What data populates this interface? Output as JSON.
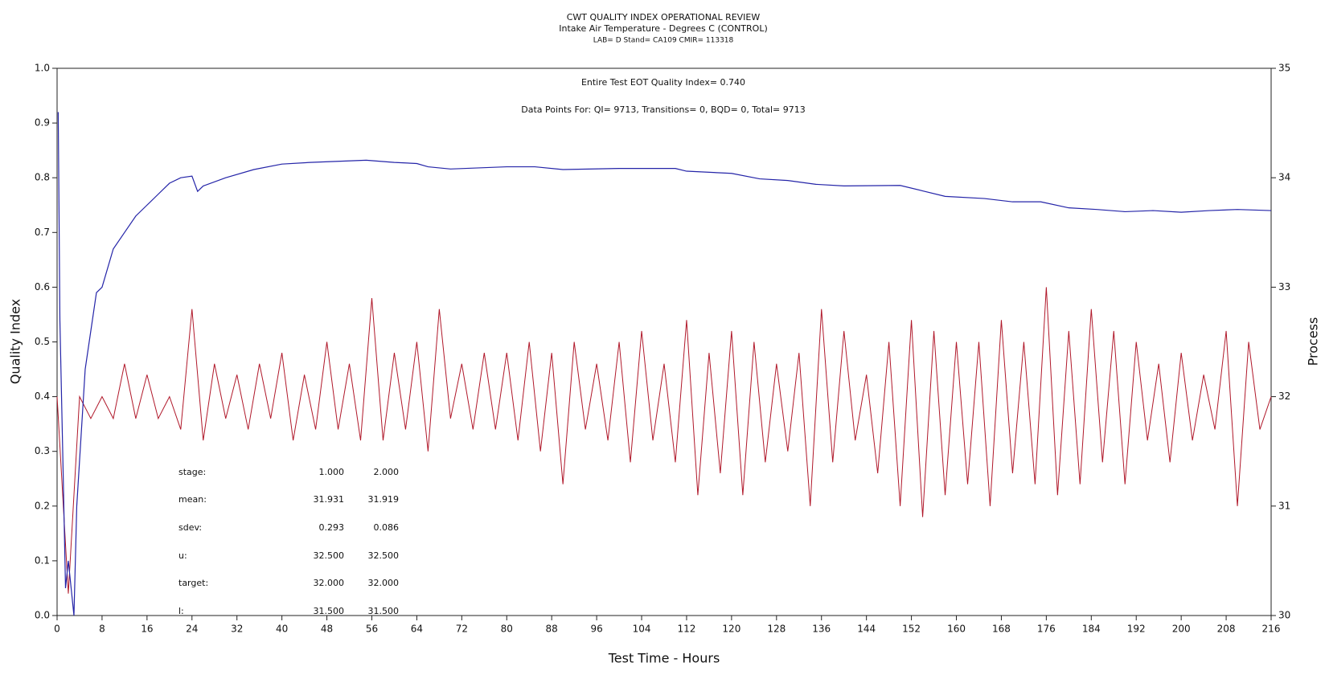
{
  "chart_data": {
    "type": "line",
    "title": "CWT QUALITY INDEX OPERATIONAL REVIEW",
    "subtitle": "Intake Air Temperature - Degrees C (CONTROL)",
    "subtitle2": "LAB= D Stand= CA109 CMIR= 113318",
    "xlabel": "Test Time - Hours",
    "ylabel": "Quality Index",
    "y2label": "Process",
    "annotations": [
      "Entire Test EOT Quality Index=   0.740",
      "Data Points For: QI=  9713, Transitions=     0, BQD=     0, Total=  9713"
    ],
    "stats_table": {
      "rows": [
        [
          "stage:",
          "1.000",
          "2.000"
        ],
        [
          "mean:",
          "31.931",
          "31.919"
        ],
        [
          "sdev:",
          "0.293",
          "0.086"
        ],
        [
          "u:",
          "32.500",
          "32.500"
        ],
        [
          "target:",
          "32.000",
          "32.000"
        ],
        [
          "l:",
          "31.500",
          "31.500"
        ]
      ]
    },
    "xlim": [
      0,
      216
    ],
    "xticks": [
      0,
      8,
      16,
      24,
      32,
      40,
      48,
      56,
      64,
      72,
      80,
      88,
      96,
      104,
      112,
      120,
      128,
      136,
      144,
      152,
      160,
      168,
      176,
      184,
      192,
      200,
      208,
      216
    ],
    "ylim": [
      0,
      1
    ],
    "yticks": [
      {
        "value": 0,
        "label": "0.0"
      },
      0.1,
      0.2,
      0.3,
      0.4,
      0.5,
      0.6,
      0.7,
      0.8,
      0.9,
      {
        "value": 1,
        "label": "1.0"
      }
    ],
    "y2lim": [
      30,
      35
    ],
    "y2ticks": [
      30,
      31,
      32,
      33,
      34,
      35
    ],
    "series": [
      {
        "name": "Process",
        "axis": "y2",
        "color": "#b0182a",
        "x": [
          0,
          2,
          4,
          6,
          8,
          10,
          12,
          14,
          16,
          18,
          20,
          22,
          24,
          26,
          28,
          30,
          32,
          34,
          36,
          38,
          40,
          42,
          44,
          46,
          48,
          50,
          52,
          54,
          56,
          58,
          60,
          62,
          64,
          66,
          68,
          70,
          72,
          74,
          76,
          78,
          80,
          82,
          84,
          86,
          88,
          90,
          92,
          94,
          96,
          98,
          100,
          102,
          104,
          106,
          108,
          110,
          112,
          114,
          116,
          118,
          120,
          122,
          124,
          126,
          128,
          130,
          132,
          134,
          136,
          138,
          140,
          142,
          144,
          146,
          148,
          150,
          152,
          154,
          156,
          158,
          160,
          162,
          164,
          166,
          168,
          170,
          172,
          174,
          176,
          178,
          180,
          182,
          184,
          186,
          188,
          190,
          192,
          194,
          196,
          198,
          200,
          202,
          204,
          206,
          208,
          210,
          212,
          214,
          216
        ],
        "values": [
          32.0,
          30.2,
          32.0,
          31.8,
          32.0,
          31.8,
          32.3,
          31.8,
          32.2,
          31.8,
          32.0,
          31.7,
          32.8,
          31.6,
          32.3,
          31.8,
          32.2,
          31.7,
          32.3,
          31.8,
          32.4,
          31.6,
          32.2,
          31.7,
          32.5,
          31.7,
          32.3,
          31.6,
          32.9,
          31.6,
          32.4,
          31.7,
          32.5,
          31.5,
          32.8,
          31.8,
          32.3,
          31.7,
          32.4,
          31.7,
          32.4,
          31.6,
          32.5,
          31.5,
          32.4,
          31.2,
          32.5,
          31.7,
          32.3,
          31.6,
          32.5,
          31.4,
          32.6,
          31.6,
          32.3,
          31.4,
          32.7,
          31.1,
          32.4,
          31.3,
          32.6,
          31.1,
          32.5,
          31.4,
          32.3,
          31.5,
          32.4,
          31.0,
          32.8,
          31.4,
          32.6,
          31.6,
          32.2,
          31.3,
          32.5,
          31.0,
          32.7,
          30.9,
          32.6,
          31.1,
          32.5,
          31.2,
          32.5,
          31.0,
          32.7,
          31.3,
          32.5,
          31.2,
          33.0,
          31.1,
          32.6,
          31.2,
          32.8,
          31.4,
          32.6,
          31.2,
          32.5,
          31.6,
          32.3,
          31.4,
          32.4,
          31.6,
          32.2,
          31.7,
          32.6,
          31.0,
          32.5,
          31.7,
          32.0
        ]
      },
      {
        "name": "Quality Index",
        "axis": "y",
        "color": "#2424a8",
        "x": [
          0.2,
          0.5,
          1,
          1.5,
          2,
          3,
          3.5,
          5,
          6,
          7,
          8,
          10,
          12,
          14,
          16,
          18,
          20,
          22,
          24,
          25,
          26,
          30,
          35,
          40,
          45,
          50,
          55,
          60,
          64,
          66,
          70,
          80,
          85,
          90,
          100,
          110,
          112,
          120,
          125,
          130,
          135,
          140,
          150,
          154,
          158,
          165,
          170,
          175,
          180,
          185,
          190,
          195,
          200,
          205,
          210,
          216
        ],
        "values": [
          0.92,
          0.54,
          0.3,
          0.05,
          0.1,
          0.0,
          0.2,
          0.45,
          0.52,
          0.59,
          0.6,
          0.67,
          0.7,
          0.73,
          0.75,
          0.77,
          0.79,
          0.8,
          0.803,
          0.775,
          0.785,
          0.8,
          0.815,
          0.825,
          0.828,
          0.83,
          0.832,
          0.828,
          0.826,
          0.82,
          0.816,
          0.82,
          0.82,
          0.815,
          0.817,
          0.817,
          0.812,
          0.808,
          0.798,
          0.795,
          0.788,
          0.785,
          0.786,
          0.776,
          0.766,
          0.762,
          0.756,
          0.756,
          0.745,
          0.742,
          0.738,
          0.74,
          0.737,
          0.74,
          0.742,
          0.74
        ]
      }
    ]
  }
}
